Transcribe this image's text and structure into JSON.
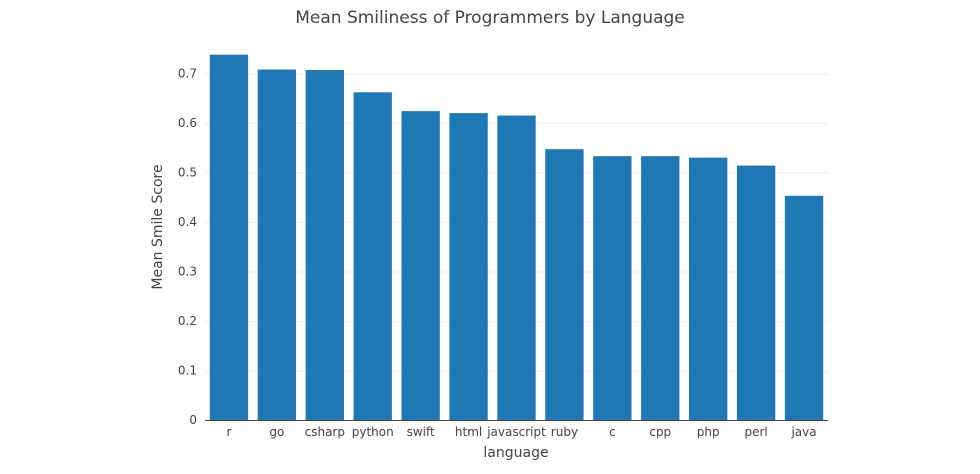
{
  "chart_data": {
    "type": "bar",
    "title": "Mean Smiliness of Programmers by Language",
    "xlabel": "language",
    "ylabel": "Mean Smile Score",
    "categories": [
      "r",
      "go",
      "csharp",
      "python",
      "swift",
      "html",
      "javascript",
      "ruby",
      "c",
      "cpp",
      "php",
      "perl",
      "java"
    ],
    "values": [
      0.738,
      0.708,
      0.707,
      0.662,
      0.624,
      0.62,
      0.615,
      0.547,
      0.533,
      0.533,
      0.53,
      0.514,
      0.453
    ],
    "ylim": [
      0,
      0.7
    ],
    "yticks": [
      0,
      0.1,
      0.2,
      0.3,
      0.4,
      0.5,
      0.6,
      0.7
    ],
    "ytick_labels": [
      "0",
      "0.1",
      "0.2",
      "0.3",
      "0.4",
      "0.5",
      "0.6",
      "0.7"
    ],
    "grid": true,
    "bar_color": "#1f77b4"
  }
}
